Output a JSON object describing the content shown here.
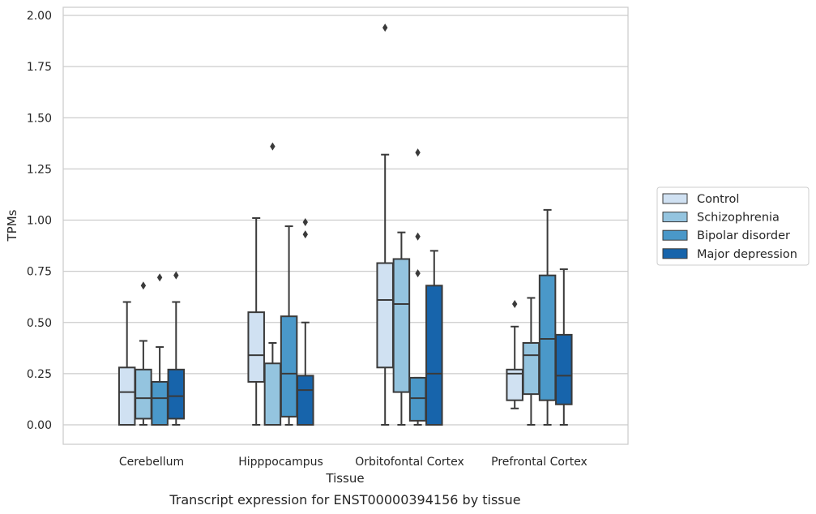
{
  "chart_data": {
    "type": "box",
    "title": "",
    "caption": "Transcript expression for ENST00000394156 by tissue",
    "xlabel": "Tissue",
    "ylabel": "TPMs",
    "ylim": [
      -0.095,
      2.04
    ],
    "yticks": [
      0.0,
      0.25,
      0.5,
      0.75,
      1.0,
      1.25,
      1.5,
      1.75,
      2.0
    ],
    "yticklabels": [
      "0.00",
      "0.25",
      "0.50",
      "0.75",
      "1.00",
      "1.25",
      "1.50",
      "1.75",
      "2.00"
    ],
    "grid": "horizontal",
    "legend_position": "right",
    "categories": [
      "Cerebellum",
      "Hipppocampus",
      "Orbitofontal Cortex",
      "Prefrontal Cortex"
    ],
    "series": [
      {
        "name": "Control",
        "color": "#d0e1f2",
        "boxes": [
          {
            "whislo": 0.0,
            "q1": 0.0,
            "med": 0.16,
            "q3": 0.28,
            "whishi": 0.6,
            "fliers": []
          },
          {
            "whislo": 0.0,
            "q1": 0.21,
            "med": 0.34,
            "q3": 0.55,
            "whishi": 1.01,
            "fliers": []
          },
          {
            "whislo": 0.0,
            "q1": 0.28,
            "med": 0.61,
            "q3": 0.79,
            "whishi": 1.32,
            "fliers": [
              1.94
            ]
          },
          {
            "whislo": 0.08,
            "q1": 0.12,
            "med": 0.25,
            "q3": 0.27,
            "whishi": 0.48,
            "fliers": [
              0.59
            ]
          }
        ]
      },
      {
        "name": "Schizophrenia",
        "color": "#94c4df",
        "boxes": [
          {
            "whislo": 0.0,
            "q1": 0.03,
            "med": 0.13,
            "q3": 0.27,
            "whishi": 0.41,
            "fliers": [
              0.68
            ]
          },
          {
            "whislo": 0.0,
            "q1": 0.0,
            "med": 0.0,
            "q3": 0.3,
            "whishi": 0.4,
            "fliers": [
              1.36
            ]
          },
          {
            "whislo": 0.0,
            "q1": 0.16,
            "med": 0.59,
            "q3": 0.81,
            "whishi": 0.94,
            "fliers": []
          },
          {
            "whislo": 0.0,
            "q1": 0.15,
            "med": 0.34,
            "q3": 0.4,
            "whishi": 0.62,
            "fliers": []
          }
        ]
      },
      {
        "name": "Bipolar disorder",
        "color": "#4a98c9",
        "boxes": [
          {
            "whislo": 0.0,
            "q1": 0.0,
            "med": 0.13,
            "q3": 0.21,
            "whishi": 0.38,
            "fliers": [
              0.72
            ]
          },
          {
            "whislo": 0.0,
            "q1": 0.04,
            "med": 0.25,
            "q3": 0.53,
            "whishi": 0.97,
            "fliers": []
          },
          {
            "whislo": 0.0,
            "q1": 0.02,
            "med": 0.13,
            "q3": 0.23,
            "whishi": 0.23,
            "fliers": [
              0.74,
              0.92,
              1.33
            ]
          },
          {
            "whislo": 0.0,
            "q1": 0.12,
            "med": 0.42,
            "q3": 0.73,
            "whishi": 1.05,
            "fliers": []
          }
        ]
      },
      {
        "name": "Major depression",
        "color": "#1764ab",
        "boxes": [
          {
            "whislo": 0.0,
            "q1": 0.03,
            "med": 0.14,
            "q3": 0.27,
            "whishi": 0.6,
            "fliers": [
              0.73
            ]
          },
          {
            "whislo": 0.0,
            "q1": 0.0,
            "med": 0.17,
            "q3": 0.24,
            "whishi": 0.5,
            "fliers": [
              0.93,
              0.99
            ]
          },
          {
            "whislo": 0.0,
            "q1": 0.0,
            "med": 0.25,
            "q3": 0.68,
            "whishi": 0.85,
            "fliers": []
          },
          {
            "whislo": 0.0,
            "q1": 0.1,
            "med": 0.24,
            "q3": 0.44,
            "whishi": 0.76,
            "fliers": []
          }
        ]
      }
    ]
  }
}
